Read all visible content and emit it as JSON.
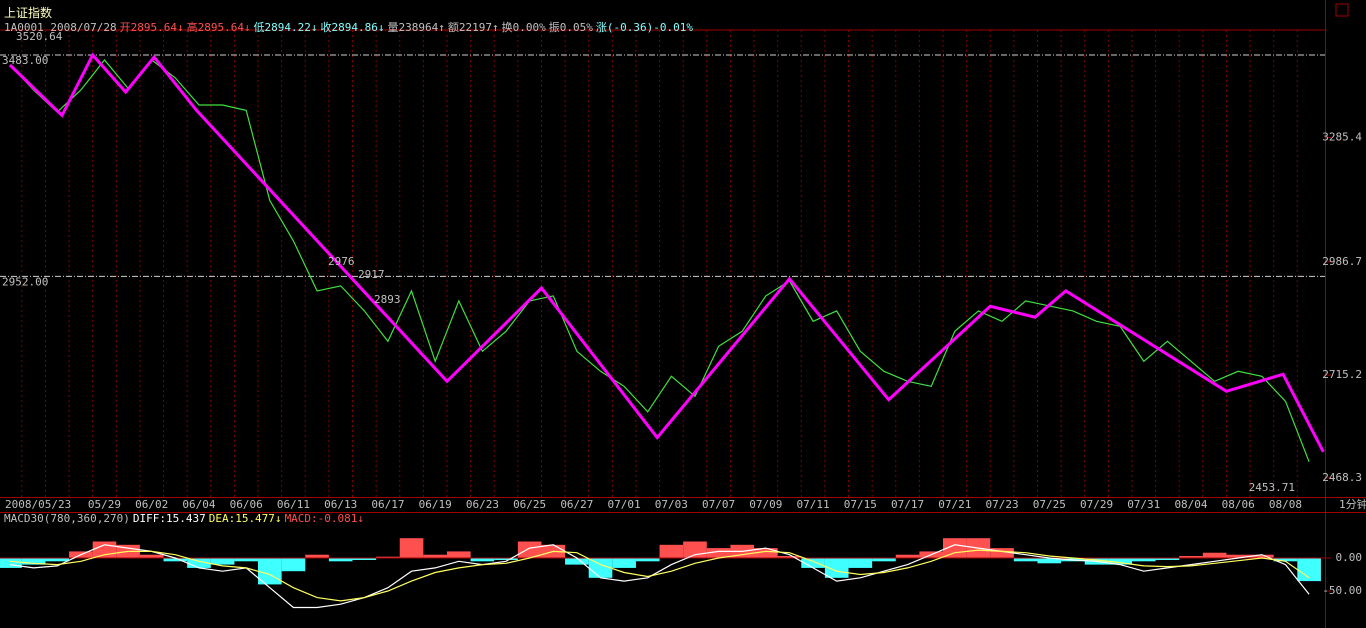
{
  "chart_data": [
    {
      "type": "line",
      "title": "上证指数",
      "header": [
        {
          "text": "1A0001 2008/07/28",
          "color": "#c0c0c0"
        },
        {
          "text": "开2895.64↓",
          "color": "#ff5050"
        },
        {
          "text": "高2895.64↓",
          "color": "#ff5050"
        },
        {
          "text": "低2894.22↓",
          "color": "#80ffff"
        },
        {
          "text": "收2894.86↓",
          "color": "#80ffff"
        },
        {
          "text": "量238964↑",
          "color": "#c0c0c0"
        },
        {
          "text": "额22197↑",
          "color": "#c0c0c0"
        },
        {
          "text": "换0.00%",
          "color": "#c0c0c0"
        },
        {
          "text": "振0.05%",
          "color": "#c0c0c0"
        },
        {
          "text": "涨(-0.36)-0.01%",
          "color": "#80ffff"
        }
      ],
      "categories": [
        "2008/05/23",
        null,
        null,
        null,
        "05/29",
        null,
        "06/02",
        null,
        "06/04",
        null,
        "06/06",
        null,
        "06/11",
        null,
        "06/13",
        null,
        "06/17",
        null,
        "06/19",
        null,
        "06/23",
        null,
        "06/25",
        null,
        "06/27",
        null,
        "07/01",
        null,
        "07/03",
        null,
        "07/07",
        null,
        "07/09",
        null,
        "07/11",
        null,
        "07/15",
        null,
        "07/17",
        null,
        "07/21",
        null,
        "07/23",
        null,
        "07/25",
        null,
        "07/29",
        null,
        "07/31",
        null,
        "08/04",
        null,
        "08/06",
        null,
        "08/08",
        null
      ],
      "series": [
        {
          "color": "#40e040",
          "values": [
            3459,
            3399,
            3346,
            3399,
            3471,
            3403,
            3471,
            3428,
            3363,
            3363,
            3350,
            3134,
            3037,
            2917,
            2929,
            2869,
            2796,
            2917,
            2748,
            2893,
            2772,
            2820,
            2893,
            2905,
            2772,
            2724,
            2688,
            2627,
            2712,
            2664,
            2784,
            2820,
            2905,
            2941,
            2844,
            2869,
            2772,
            2724,
            2700,
            2688,
            2820,
            2869,
            2844,
            2893,
            2881,
            2869,
            2844,
            2832,
            2748,
            2796,
            2748,
            2700,
            2724,
            2712,
            2652,
            2507
          ]
        },
        {
          "color": "#ff00ff",
          "x": [
            0,
            2.2,
            3.5,
            4.9,
            6.1,
            7.9,
            18.5,
            22.5,
            27.4,
            33.0,
            37.2,
            41.5,
            43.4,
            44.7,
            51.5,
            53.9,
            55.6
          ],
          "values": [
            3459,
            3338,
            3483,
            3394,
            3478,
            3350,
            2700,
            2924,
            2565,
            2946,
            2656,
            2880,
            2854,
            2917,
            2676,
            2717,
            2531
          ]
        }
      ],
      "ylim": [
        2422.5,
        3543
      ],
      "yticks": [
        3285.4,
        2986.7,
        2715.2,
        2468.3
      ],
      "ref_lines": [
        {
          "value": 3483,
          "label": "3483.00"
        },
        {
          "value": 2952,
          "label": "2952.00"
        }
      ],
      "annotations": [
        "3520.64",
        "2453.71",
        "2976",
        "2917",
        "2893"
      ],
      "x_label": "1分钟",
      "grid": true
    },
    {
      "type": "macd",
      "title": "MACD30(780,360,270)",
      "categories_from": 0,
      "series": [
        {
          "name": "DIFF:15.437",
          "color": "#ffffff",
          "values": [
            -10,
            -15,
            -12,
            5,
            20,
            15,
            10,
            0,
            -15,
            -20,
            -15,
            -45,
            -75,
            -75,
            -70,
            -60,
            -45,
            -20,
            -15,
            -5,
            -10,
            -5,
            15,
            20,
            0,
            -30,
            -35,
            -30,
            -10,
            5,
            10,
            10,
            15,
            5,
            -15,
            -35,
            -30,
            -20,
            -10,
            5,
            20,
            15,
            10,
            5,
            0,
            -3,
            -5,
            -10,
            -20,
            -15,
            -10,
            -5,
            0,
            5,
            -10,
            -55
          ]
        },
        {
          "name": "DEA:15.477↓",
          "color": "#ffff60",
          "values": [
            -5,
            -8,
            -10,
            -5,
            5,
            10,
            10,
            5,
            -5,
            -12,
            -15,
            -25,
            -45,
            -60,
            -65,
            -60,
            -50,
            -35,
            -22,
            -15,
            -10,
            -8,
            0,
            10,
            8,
            -10,
            -22,
            -28,
            -20,
            -8,
            0,
            5,
            10,
            8,
            -5,
            -20,
            -25,
            -22,
            -15,
            -5,
            8,
            12,
            10,
            8,
            3,
            0,
            -3,
            -7,
            -12,
            -13,
            -12,
            -8,
            -4,
            0,
            -5,
            -30
          ]
        },
        {
          "name": "MACD:-0.081↓",
          "color": "#ff5050",
          "negative_color": "#40ffff",
          "values": [
            -15,
            -10,
            -5,
            10,
            25,
            20,
            5,
            -5,
            -15,
            -10,
            -5,
            -40,
            -20,
            5,
            -5,
            -3,
            2,
            30,
            5,
            10,
            -5,
            -3,
            25,
            20,
            -10,
            -30,
            -15,
            -5,
            20,
            25,
            15,
            20,
            15,
            3,
            -15,
            -30,
            -15,
            -5,
            5,
            10,
            30,
            30,
            15,
            -5,
            -8,
            -5,
            -10,
            -10,
            -5,
            -3,
            3,
            8,
            5,
            5,
            -5,
            -35
          ]
        }
      ],
      "ylim": [
        -106,
        50
      ],
      "yticks": [
        {
          "value": 0,
          "label": "0.00"
        },
        {
          "value": -50,
          "label": "-50.00"
        }
      ]
    }
  ]
}
